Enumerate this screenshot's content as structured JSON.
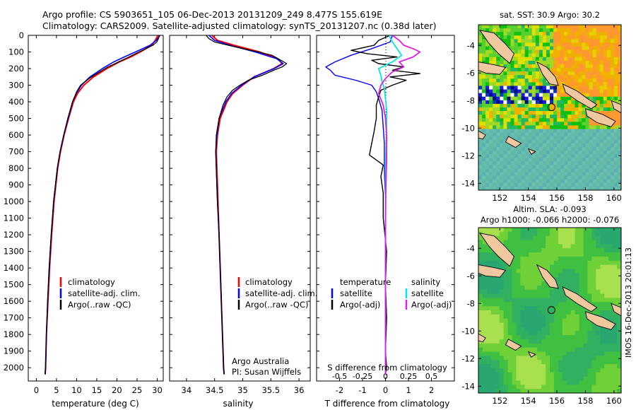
{
  "header": {
    "title_line1": "Argo profile: CS 5903651_105 06-Dec-2013 20131209_249 8.477S 155.619E",
    "title_line2": "Climatology: CARS2009. Satellite-adjusted climatology: synTS_20131207.nc (0.38d later)"
  },
  "colors": {
    "climatology": "#ff0000",
    "satellite": "#0000ff",
    "argo": "#000000",
    "sal_satellite": "#00e5e5",
    "sal_argo": "#e020e0"
  },
  "chart_data": [
    {
      "type": "line",
      "id": "temperature",
      "xlabel": "temperature (deg C)",
      "ylabel": "",
      "xlim": [
        -2,
        31.5
      ],
      "ylim": [
        2080,
        0
      ],
      "xticks": [
        0,
        5,
        10,
        15,
        20,
        25,
        30
      ],
      "yticks": [
        0,
        100,
        200,
        300,
        400,
        500,
        600,
        700,
        800,
        900,
        1000,
        1100,
        1200,
        1300,
        1400,
        1500,
        1600,
        1700,
        1800,
        1900,
        2000
      ],
      "legend": [
        "climatology",
        "satellite-adj. clim.",
        "Argo(..raw -QC)"
      ],
      "series": [
        {
          "name": "climatology",
          "depth": [
            0,
            30,
            60,
            100,
            130,
            160,
            200,
            250,
            300,
            350,
            400,
            500,
            600,
            700,
            800,
            1000,
            1200,
            1400,
            1600,
            1800,
            2000,
            2040
          ],
          "values": [
            30.2,
            29.5,
            28.6,
            25.8,
            23.4,
            20.6,
            17.5,
            14.2,
            11.8,
            10.2,
            9.2,
            8.0,
            6.9,
            6.0,
            5.3,
            4.4,
            3.8,
            3.3,
            2.9,
            2.5,
            2.3,
            2.2
          ]
        },
        {
          "name": "satellite-adj. clim.",
          "depth": [
            0,
            30,
            60,
            100,
            130,
            160,
            200,
            250,
            300,
            350,
            400,
            500,
            600,
            700,
            800,
            1000,
            1200,
            1400,
            1600,
            1800,
            2000,
            2040
          ],
          "values": [
            30.7,
            29.8,
            28.2,
            24.6,
            21.8,
            19.2,
            16.4,
            13.3,
            11.2,
            9.9,
            9.0,
            7.9,
            6.8,
            5.9,
            5.2,
            4.3,
            3.7,
            3.2,
            2.8,
            2.5,
            2.3,
            2.2
          ]
        },
        {
          "name": "Argo(..raw -QC)",
          "depth": [
            0,
            20,
            40,
            60,
            80,
            100,
            130,
            160,
            190,
            220,
            260,
            300,
            340,
            400,
            500,
            600,
            700,
            800,
            1000,
            1200,
            1400,
            1600,
            1800,
            2000,
            2040
          ],
          "values": [
            30.5,
            30.3,
            29.9,
            28.9,
            27.2,
            25.5,
            23.0,
            20.4,
            17.8,
            15.7,
            13.1,
            11.0,
            10.0,
            9.0,
            7.8,
            6.8,
            5.9,
            5.2,
            4.3,
            3.7,
            3.2,
            2.8,
            2.5,
            2.3,
            2.2
          ]
        }
      ]
    },
    {
      "type": "line",
      "id": "salinity",
      "xlabel": "salinity",
      "ylabel": "",
      "xlim": [
        33.7,
        36.2
      ],
      "ylim": [
        2080,
        0
      ],
      "xticks": [
        34,
        34.5,
        35,
        35.5,
        36
      ],
      "xticklabels": [
        "34",
        "34.5",
        "35",
        "35.5",
        "36"
      ],
      "legend": [
        "climatology",
        "satellite-adj. clim.",
        "Argo(..raw -QC)"
      ],
      "annotation_line1": "Argo Australia",
      "annotation_line2": "PI: Susan Wijffels",
      "series": [
        {
          "name": "climatology",
          "depth": [
            0,
            30,
            60,
            100,
            140,
            170,
            200,
            250,
            300,
            350,
            400,
            500,
            600,
            700,
            800,
            1000,
            1200,
            1400,
            1600,
            1800,
            2000,
            2040
          ],
          "values": [
            34.45,
            34.55,
            34.85,
            35.3,
            35.62,
            35.7,
            35.55,
            35.2,
            35.0,
            34.82,
            34.72,
            34.6,
            34.55,
            34.53,
            34.54,
            34.56,
            34.58,
            34.6,
            34.62,
            34.64,
            34.66,
            34.67
          ]
        },
        {
          "name": "satellite-adj. clim.",
          "depth": [
            0,
            30,
            60,
            100,
            140,
            170,
            200,
            250,
            300,
            350,
            400,
            500,
            600,
            700,
            800,
            1000,
            1200,
            1400,
            1600,
            1800,
            2000,
            2040
          ],
          "values": [
            34.4,
            34.5,
            34.78,
            35.22,
            35.6,
            35.72,
            35.56,
            35.2,
            34.98,
            34.8,
            34.7,
            34.58,
            34.54,
            34.52,
            34.53,
            34.55,
            34.58,
            34.6,
            34.62,
            34.64,
            34.66,
            34.67
          ]
        },
        {
          "name": "Argo(..raw -QC)",
          "depth": [
            0,
            20,
            40,
            60,
            80,
            100,
            120,
            150,
            170,
            190,
            210,
            240,
            270,
            300,
            330,
            370,
            420,
            500,
            600,
            700,
            800,
            1000,
            1200,
            1400,
            1600,
            1800,
            2000,
            2040
          ],
          "values": [
            34.35,
            34.4,
            34.5,
            34.75,
            35.0,
            35.28,
            35.52,
            35.68,
            35.78,
            35.7,
            35.55,
            35.35,
            35.1,
            34.95,
            34.82,
            34.72,
            34.65,
            34.58,
            34.53,
            34.52,
            34.53,
            34.55,
            34.58,
            34.6,
            34.62,
            34.64,
            34.66,
            34.67
          ]
        }
      ]
    },
    {
      "type": "line",
      "id": "difference",
      "xlabel": "T difference from climatology",
      "xlabel_top": "S difference from climatology",
      "xlim": [
        -3,
        3
      ],
      "ylim": [
        2080,
        0
      ],
      "xticks": [
        -2,
        -1,
        0,
        1,
        2
      ],
      "xticklabels": [
        "-2",
        "-1",
        "0",
        "1",
        "2"
      ],
      "sticks": [
        -2,
        -1,
        0,
        1,
        2
      ],
      "sticklabels": [
        "-0.5",
        "-0.25",
        "0",
        "0.25",
        "0.5"
      ],
      "legend_headers": [
        "temperature",
        "salinity"
      ],
      "legend": [
        "satellite",
        "Argo(-adj)",
        "satellite",
        "Argo(-adj)"
      ],
      "series": [
        {
          "name": "temperature satellite",
          "depth": [
            0,
            40,
            80,
            120,
            160,
            190,
            210,
            240,
            270,
            300,
            340,
            380,
            450,
            550,
            650,
            800,
            1000,
            1200,
            1400,
            1600,
            1800,
            2000,
            2040
          ],
          "values": [
            0.3,
            0.2,
            -0.6,
            -1.5,
            -2.2,
            -2.6,
            -2.4,
            -2.2,
            -1.3,
            -0.6,
            -0.4,
            -0.3,
            -0.15,
            -0.1,
            -0.05,
            -0.05,
            0.0,
            0.0,
            0.0,
            0.0,
            0.0,
            0.0,
            0.0
          ]
        },
        {
          "name": "temperature Argo(-adj)",
          "depth": [
            0,
            30,
            60,
            90,
            110,
            130,
            150,
            170,
            190,
            210,
            230,
            250,
            270,
            300,
            330,
            370,
            420,
            500,
            580,
            650,
            720,
            780,
            850,
            950,
            1100,
            1300,
            1500,
            1700,
            1900,
            2000,
            2040
          ],
          "values": [
            0.2,
            -0.3,
            -0.5,
            -1.5,
            -0.8,
            0.5,
            -0.6,
            -0.3,
            0.8,
            0.3,
            1.5,
            0.2,
            0.9,
            0.3,
            -0.2,
            -0.3,
            -0.4,
            -0.4,
            -0.5,
            -0.6,
            -0.7,
            -0.1,
            -0.2,
            -0.1,
            -0.1,
            0.05,
            0.0,
            0.05,
            0.0,
            0.05,
            0.0
          ]
        },
        {
          "name": "salinity satellite",
          "depth": [
            0,
            40,
            80,
            120,
            160,
            200,
            240,
            280,
            320,
            380,
            450,
            550,
            700,
            900,
            1100,
            1300,
            1500,
            1700,
            1900,
            2040
          ],
          "values": [
            0.15,
            0.3,
            0.5,
            0.7,
            0.3,
            -0.3,
            -0.2,
            -0.15,
            -0.05,
            0.0,
            0.05,
            0.05,
            0.02,
            0.0,
            0.0,
            0.0,
            0.0,
            0.0,
            0.0,
            0.0
          ]
        },
        {
          "name": "salinity Argo(-adj)",
          "depth": [
            0,
            30,
            60,
            80,
            100,
            130,
            160,
            190,
            220,
            260,
            300,
            350,
            420,
            500,
            600,
            750,
            900,
            1100,
            1300,
            1500,
            1700,
            1900,
            2040
          ],
          "values": [
            0.3,
            0.6,
            0.8,
            1.2,
            1.5,
            1.2,
            0.6,
            0.8,
            0.3,
            0.0,
            -0.2,
            -0.3,
            -0.1,
            0.0,
            0.05,
            0.05,
            0.02,
            0.0,
            0.0,
            0.0,
            0.0,
            0.0,
            0.0
          ]
        }
      ]
    },
    {
      "type": "heatmap",
      "id": "sst_map",
      "title": "sat. SST: 30.9 Argo: 30.2",
      "xlim": [
        150.5,
        160.5
      ],
      "ylim": [
        -14.5,
        -2.5
      ],
      "xticks": [
        152,
        154,
        156,
        158,
        160
      ],
      "yticks": [
        -4,
        -6,
        -8,
        -10,
        -12,
        -14
      ],
      "argo_position": {
        "lon": 155.619,
        "lat": -8.477
      }
    },
    {
      "type": "heatmap",
      "id": "sla_map",
      "title_line1": "Altim. SLA: -0.093",
      "title_line2": "Argo h1000: -0.066 h2000: -0.076",
      "xlim": [
        150.5,
        160.5
      ],
      "ylim": [
        -14.5,
        -2.5
      ],
      "xticks": [
        152,
        154,
        156,
        158,
        160
      ],
      "yticks": [
        -4,
        -6,
        -8,
        -10,
        -12,
        -14
      ],
      "argo_position": {
        "lon": 155.619,
        "lat": -8.477
      }
    }
  ],
  "footer": {
    "stamp": "IMOS 16-Dec-2013 20:01:13"
  }
}
